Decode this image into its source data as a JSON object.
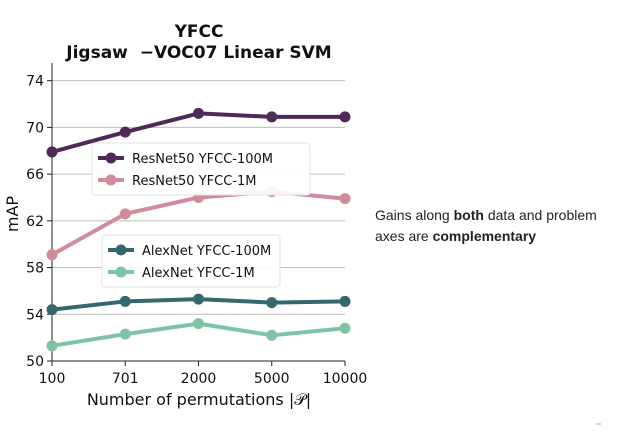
{
  "chart_data": {
    "type": "line",
    "title": "YFCC",
    "subtitle": "Jigsaw  −VOC07 Linear SVM",
    "xlabel": "Number of permutations |𝒫|",
    "ylabel": "mAP",
    "categories": [
      "100",
      "701",
      "2000",
      "5000",
      "10000"
    ],
    "y_ticks": [
      50,
      54,
      58,
      62,
      66,
      70,
      74
    ],
    "ylim": [
      50,
      75
    ],
    "grid": "horizontal",
    "series": [
      {
        "name": "ResNet50 YFCC-100M",
        "color": "#4f2a57",
        "values": [
          67.9,
          69.6,
          71.2,
          70.9,
          70.9
        ]
      },
      {
        "name": "ResNet50 YFCC-1M",
        "color": "#d08c9b",
        "values": [
          59.1,
          62.6,
          64.0,
          64.5,
          63.9
        ]
      },
      {
        "name": "AlexNet YFCC-100M",
        "color": "#35676e",
        "values": [
          54.4,
          55.1,
          55.3,
          55.0,
          55.1
        ]
      },
      {
        "name": "AlexNet YFCC-1M",
        "color": "#7fc3a6",
        "values": [
          51.3,
          52.3,
          53.2,
          52.2,
          52.8
        ]
      }
    ],
    "legends": [
      {
        "placement": "middle-left",
        "series": [
          0,
          1
        ]
      },
      {
        "placement": "lower-middle",
        "series": [
          2,
          3
        ]
      }
    ]
  },
  "caption": {
    "part1": "Gains along ",
    "bold1": "both",
    "part2": " data and problem axes are ",
    "bold2": "complementary"
  }
}
